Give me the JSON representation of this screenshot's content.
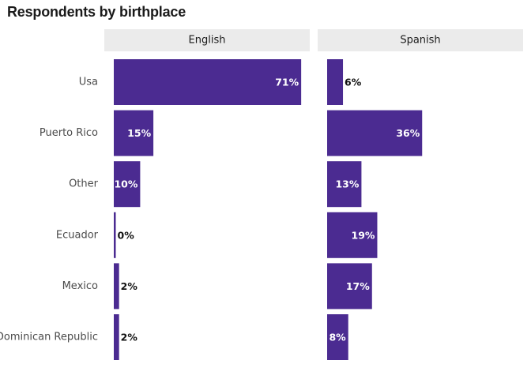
{
  "title": "Respondents by birthplace",
  "chart_data": {
    "type": "bar",
    "orientation": "horizontal",
    "title": "Respondents by birthplace",
    "categories": [
      "Usa",
      "Puerto Rico",
      "Other",
      "Ecuador",
      "Mexico",
      "Dominican Republic"
    ],
    "unit": "%",
    "xlim": [
      0,
      100
    ],
    "panels": [
      {
        "name": "English",
        "values": [
          71,
          15,
          10,
          0,
          2,
          2
        ]
      },
      {
        "name": "Spanish",
        "values": [
          6,
          36,
          13,
          19,
          17,
          8
        ]
      }
    ],
    "bar_color": "#4b2b91",
    "strip_color": "#ebebeb",
    "grid": false,
    "legend": "none"
  }
}
